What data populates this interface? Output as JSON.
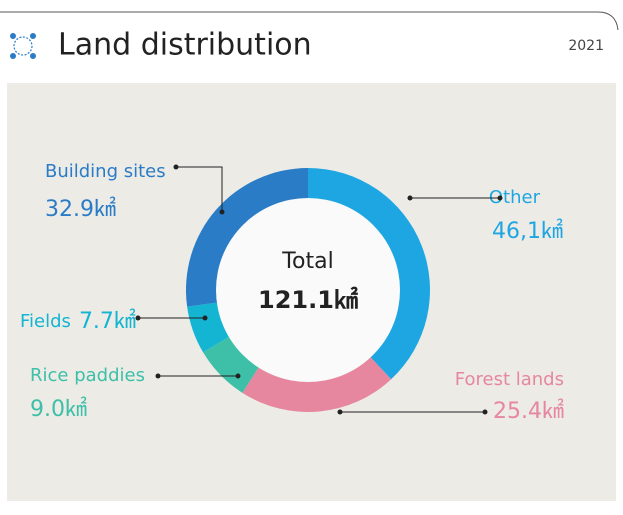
{
  "header": {
    "title": "Land distribution",
    "year": "2021"
  },
  "chart_data": {
    "type": "donut",
    "categories": [
      "Other",
      "Forest lands",
      "Rice paddies",
      "Fields",
      "Building sites"
    ],
    "values": [
      46.1,
      25.4,
      9.0,
      7.7,
      32.9
    ],
    "value_labels": [
      "46,1㎢",
      "25.4㎢",
      "9.0㎢",
      "7.7㎢",
      "32.9㎢"
    ],
    "colors": [
      "#1ea6e2",
      "#e6869f",
      "#3dbfa8",
      "#13b5d2",
      "#2a7cc6"
    ],
    "center_label": "Total",
    "total": {
      "value": 121.1,
      "label": "121.1㎢"
    }
  }
}
